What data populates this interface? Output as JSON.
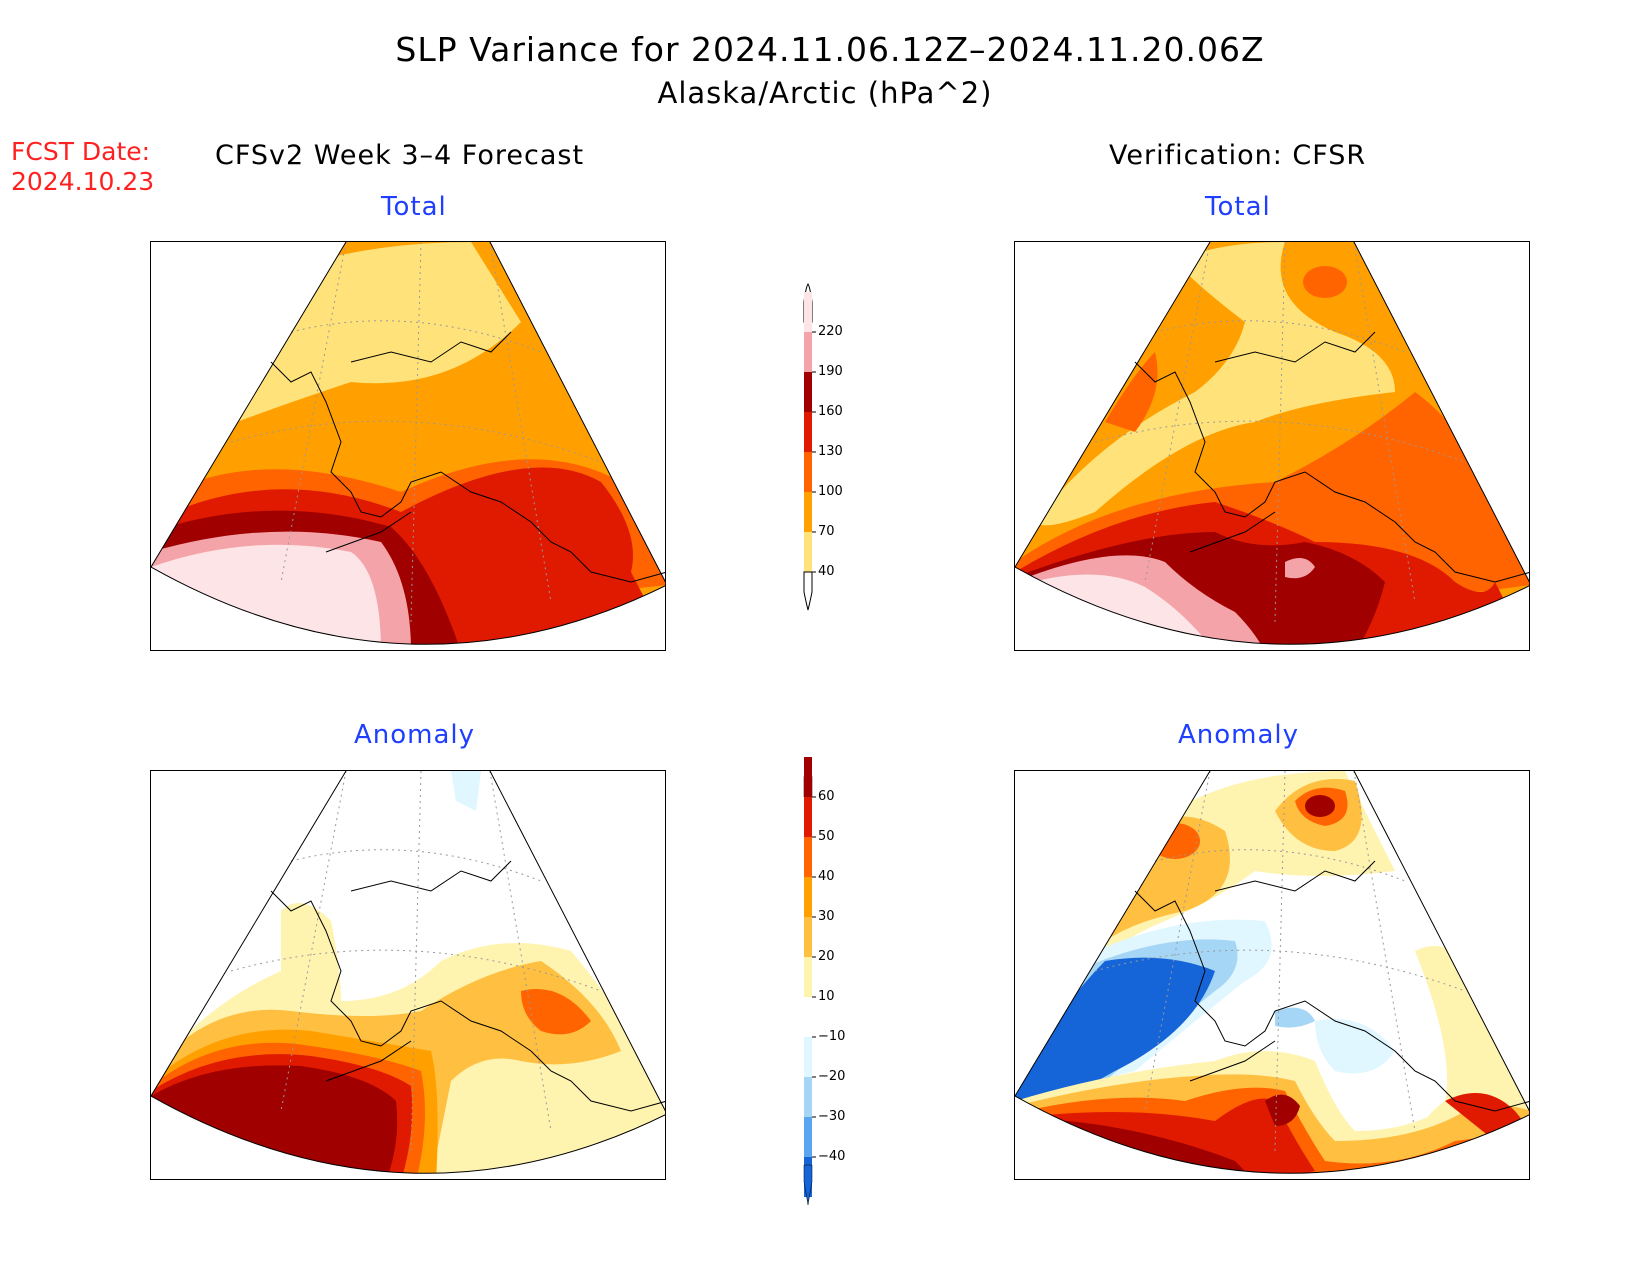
{
  "title": "SLP Variance for 2024.11.06.12Z–2024.11.20.06Z",
  "subtitle": "Alaska/Arctic (hPa^2)",
  "forecast_date": {
    "line1": "FCST Date:",
    "line2": "2024.10.23"
  },
  "columns": {
    "left": "CFSv2 Week 3–4 Forecast",
    "right": "Verification: CFSR"
  },
  "panels": {
    "fcst_total": {
      "label": "Total"
    },
    "verif_total": {
      "label": "Total"
    },
    "fcst_anom": {
      "label": "Anomaly"
    },
    "verif_anom": {
      "label": "Anomaly"
    }
  },
  "colorbars": {
    "total": {
      "levels": [
        "220",
        "190",
        "160",
        "130",
        "100",
        "70",
        "40"
      ],
      "colors": [
        "#fde4e6",
        "#f4a4a8",
        "#a00000",
        "#e01a00",
        "#ff6400",
        "#ffa000",
        "#ffe37a"
      ]
    },
    "anomaly": {
      "levels": [
        "60",
        "50",
        "40",
        "30",
        "20",
        "10",
        "−10",
        "−20",
        "−30",
        "−40"
      ],
      "colors": [
        "#a00000",
        "#e01a00",
        "#ff6400",
        "#ffa000",
        "#ffbf40",
        "#fff3b0",
        "#ffffff",
        "#e0f7ff",
        "#a6d6f5",
        "#5aa5f0",
        "#1565d8"
      ]
    }
  },
  "palette": {
    "c40": "#ffe37a",
    "c70": "#ffa000",
    "c100": "#ff6400",
    "c130": "#e01a00",
    "c160": "#a00000",
    "c190": "#f4a4a8",
    "c220": "#fde4e6",
    "a10": "#fff3b0",
    "a20": "#ffbf40",
    "a30": "#ffa000",
    "a40": "#ff6400",
    "a50": "#e01a00",
    "a60": "#a00000",
    "n10": "#e0f7ff",
    "n20": "#a6d6f5",
    "n30": "#5aa5f0",
    "n40": "#1565d8"
  }
}
